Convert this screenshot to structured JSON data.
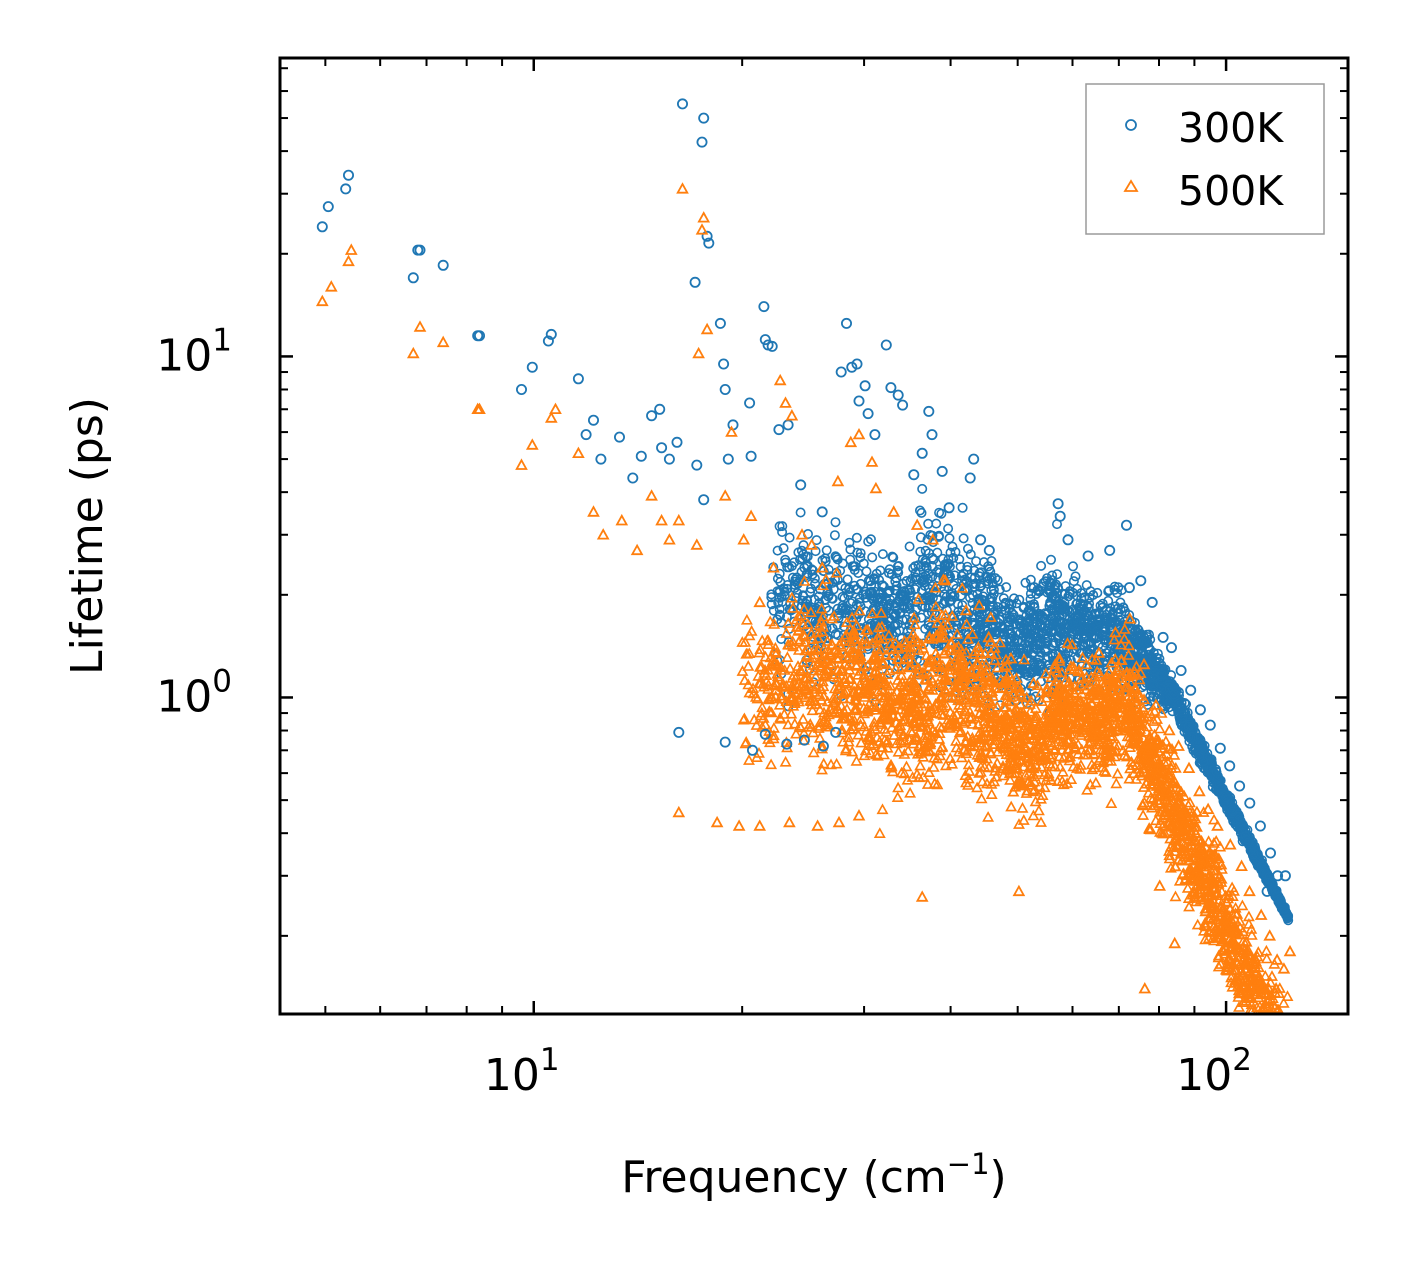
{
  "chart_data": {
    "type": "scatter",
    "title": "",
    "xlabel": "Frequency (cm⁻¹)",
    "xlabel_base": "Frequency (cm",
    "xlabel_sup": "−1",
    "xlabel_close": ")",
    "ylabel": "Lifetime (ps)",
    "xscale": "log",
    "yscale": "log",
    "xlim": [
      4.3,
      150
    ],
    "ylim": [
      0.118,
      75
    ],
    "x_major_ticks": [
      {
        "value": 10,
        "base": "10",
        "exp": "1"
      },
      {
        "value": 100,
        "base": "10",
        "exp": "2"
      }
    ],
    "y_major_ticks": [
      {
        "value": 1,
        "base": "10",
        "exp": "0"
      },
      {
        "value": 10,
        "base": "10",
        "exp": "1"
      }
    ],
    "legend_position": "top-right",
    "series": [
      {
        "name": "300K",
        "marker": "circle",
        "color": "#1f77b4",
        "points": [
          [
            4.95,
            24
          ],
          [
            5.05,
            27.5
          ],
          [
            5.35,
            31
          ],
          [
            5.4,
            34
          ],
          [
            6.7,
            17
          ],
          [
            6.8,
            20.5
          ],
          [
            6.85,
            20.5
          ],
          [
            7.4,
            18.5
          ],
          [
            8.3,
            11.5
          ],
          [
            8.35,
            11.5
          ],
          [
            9.6,
            8
          ],
          [
            9.95,
            9.3
          ],
          [
            10.5,
            11.1
          ],
          [
            10.6,
            11.6
          ],
          [
            11.6,
            8.6
          ],
          [
            11.9,
            5.9
          ],
          [
            12.2,
            6.5
          ],
          [
            12.5,
            5
          ],
          [
            13.3,
            5.8
          ],
          [
            13.9,
            4.4
          ],
          [
            14.3,
            5.1
          ],
          [
            14.8,
            6.7
          ],
          [
            15.2,
            7
          ],
          [
            15.3,
            5.4
          ],
          [
            15.7,
            5
          ],
          [
            16.1,
            5.6
          ],
          [
            16.4,
            55
          ],
          [
            17.2,
            4.8
          ],
          [
            17.5,
            42.5
          ],
          [
            17.6,
            50
          ],
          [
            17.8,
            22.5
          ],
          [
            17.9,
            21.5
          ],
          [
            17.1,
            16.5
          ],
          [
            17.6,
            3.8
          ],
          [
            18.6,
            12.5
          ],
          [
            18.8,
            9.5
          ],
          [
            18.9,
            8
          ],
          [
            19.1,
            5
          ],
          [
            19.4,
            6.3
          ],
          [
            20.5,
            7.3
          ],
          [
            20.6,
            5.1
          ],
          [
            21.5,
            14
          ],
          [
            21.6,
            11.2
          ],
          [
            21.8,
            10.8
          ],
          [
            22.1,
            10.7
          ],
          [
            22.6,
            6.1
          ],
          [
            23.3,
            6.3
          ],
          [
            24.3,
            4.2
          ],
          [
            26.1,
            3.5
          ],
          [
            27.8,
            9
          ],
          [
            28.3,
            12.5
          ],
          [
            28.8,
            9.3
          ],
          [
            29.3,
            9.5
          ],
          [
            29.5,
            7.4
          ],
          [
            30.1,
            8.2
          ],
          [
            30.4,
            6.8
          ],
          [
            31.1,
            5.9
          ],
          [
            32.3,
            10.8
          ],
          [
            32.8,
            8.1
          ],
          [
            33.6,
            7.7
          ],
          [
            34.1,
            7.2
          ],
          [
            35.4,
            4.5
          ],
          [
            36.4,
            5.2
          ],
          [
            37.2,
            6.9
          ],
          [
            37.6,
            5.9
          ],
          [
            38.9,
            4.6
          ],
          [
            39.8,
            3.6
          ],
          [
            42.7,
            4.4
          ],
          [
            43.2,
            5
          ],
          [
            44.2,
            2.9
          ],
          [
            45.5,
            2.7
          ],
          [
            52.8,
            2.1
          ],
          [
            57.2,
            3.7
          ],
          [
            57.6,
            3.4
          ],
          [
            59.1,
            2.9
          ],
          [
            63.2,
            2.6
          ],
          [
            67.9,
            2.7
          ],
          [
            71.8,
            3.2
          ],
          [
            72.5,
            2.1
          ],
          [
            75.3,
            2.2
          ],
          [
            78.2,
            1.9
          ],
          [
            81.1,
            1.5
          ],
          [
            83.4,
            1.4
          ],
          [
            86.1,
            1.2
          ],
          [
            88.9,
            1.05
          ],
          [
            91.8,
            0.92
          ],
          [
            94.9,
            0.83
          ],
          [
            98.1,
            0.71
          ],
          [
            101.2,
            0.63
          ],
          [
            104.6,
            0.55
          ],
          [
            108.2,
            0.49
          ],
          [
            112.1,
            0.42
          ],
          [
            115.9,
            0.35
          ],
          [
            118.7,
            0.3
          ],
          [
            121.8,
            0.3
          ],
          [
            114.6,
            0.27
          ],
          [
            16.2,
            0.79
          ],
          [
            18.9,
            0.74
          ],
          [
            20.7,
            0.7
          ],
          [
            21.6,
            0.78
          ],
          [
            23.2,
            0.73
          ],
          [
            24.6,
            0.75
          ],
          [
            26.2,
            0.72
          ],
          [
            27.3,
            0.79
          ]
        ]
      },
      {
        "name": "500K",
        "marker": "triangle",
        "color": "#ff7f0e",
        "points": [
          [
            4.95,
            14.5
          ],
          [
            5.1,
            16
          ],
          [
            5.4,
            19
          ],
          [
            5.45,
            20.5
          ],
          [
            6.7,
            10.2
          ],
          [
            6.85,
            12.2
          ],
          [
            7.4,
            11
          ],
          [
            8.3,
            7
          ],
          [
            8.35,
            7
          ],
          [
            9.6,
            4.8
          ],
          [
            9.95,
            5.5
          ],
          [
            10.6,
            6.6
          ],
          [
            10.75,
            7
          ],
          [
            11.6,
            5.2
          ],
          [
            12.2,
            3.5
          ],
          [
            12.6,
            3
          ],
          [
            13.4,
            3.3
          ],
          [
            14.1,
            2.7
          ],
          [
            14.8,
            3.9
          ],
          [
            15.3,
            3.3
          ],
          [
            15.7,
            2.9
          ],
          [
            16.2,
            3.3
          ],
          [
            16.4,
            31
          ],
          [
            17.2,
            2.8
          ],
          [
            17.3,
            10.2
          ],
          [
            17.5,
            23.5
          ],
          [
            17.6,
            25.5
          ],
          [
            17.8,
            12
          ],
          [
            18.9,
            3.9
          ],
          [
            19.3,
            6
          ],
          [
            20.1,
            2.9
          ],
          [
            20.6,
            3.4
          ],
          [
            21.2,
            1.9
          ],
          [
            22.2,
            2.4
          ],
          [
            22.7,
            8.5
          ],
          [
            23.1,
            7.3
          ],
          [
            23.6,
            6.7
          ],
          [
            24.4,
            3
          ],
          [
            25.2,
            2.8
          ],
          [
            26.1,
            2.4
          ],
          [
            27.5,
            4.3
          ],
          [
            28.7,
            5.6
          ],
          [
            29.5,
            5.9
          ],
          [
            30.8,
            4.9
          ],
          [
            31.2,
            4.1
          ],
          [
            33.1,
            3.5
          ],
          [
            35.8,
            3.2
          ],
          [
            37.7,
            2.9
          ],
          [
            39.3,
            2.2
          ],
          [
            42.1,
            1.8
          ],
          [
            45.4,
            1.5
          ],
          [
            48.9,
            1.3
          ],
          [
            52.7,
            1.1
          ],
          [
            57.4,
            1.3
          ],
          [
            61.3,
            1.2
          ],
          [
            65.5,
            1.35
          ],
          [
            69.2,
            1.55
          ],
          [
            72.6,
            1.7
          ],
          [
            76.1,
            1.25
          ],
          [
            79.2,
            0.95
          ],
          [
            82.8,
            0.8
          ],
          [
            85.4,
            0.72
          ],
          [
            88.4,
            0.62
          ],
          [
            91.5,
            0.53
          ],
          [
            94.2,
            0.47
          ],
          [
            97.2,
            0.42
          ],
          [
            101.4,
            0.37
          ],
          [
            105.3,
            0.32
          ],
          [
            108.1,
            0.27
          ],
          [
            112.4,
            0.23
          ],
          [
            115.6,
            0.2
          ],
          [
            118.5,
            0.17
          ],
          [
            121.2,
            0.16
          ],
          [
            123.7,
            0.18
          ],
          [
            118.1,
            0.14
          ],
          [
            76.3,
            0.14
          ],
          [
            84.3,
            0.19
          ],
          [
            80.2,
            0.28
          ],
          [
            36.4,
            0.26
          ],
          [
            50.2,
            0.27
          ],
          [
            16.2,
            0.46
          ],
          [
            18.4,
            0.43
          ],
          [
            19.8,
            0.42
          ],
          [
            21.2,
            0.42
          ],
          [
            23.4,
            0.43
          ],
          [
            25.7,
            0.42
          ],
          [
            27.6,
            0.43
          ],
          [
            29.5,
            0.45
          ]
        ]
      }
    ]
  }
}
